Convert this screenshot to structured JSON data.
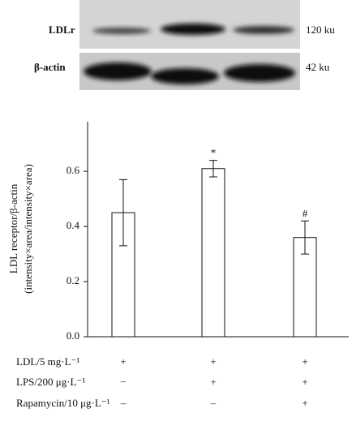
{
  "blot": {
    "rows": [
      {
        "label": "LDLr",
        "size": "120 ku"
      },
      {
        "label": "β-actin",
        "size": "42 ku"
      }
    ]
  },
  "chart_data": {
    "type": "bar",
    "y_label": [
      "LDL receptor/β-actin",
      "(intensity×area/intensity×area)"
    ],
    "categories": [
      null,
      null,
      null
    ],
    "values": [
      0.45,
      0.61,
      0.36
    ],
    "errors": [
      0.12,
      0.03,
      0.06
    ],
    "annotations": [
      null,
      "*",
      "#"
    ],
    "color": "#ffffff",
    "ylim": [
      0,
      0.78
    ],
    "yticks": [
      {
        "value": 0,
        "label": "0.0"
      },
      0.2,
      0.4,
      0.6
    ]
  },
  "treatments": {
    "rows": [
      {
        "label": "LDL/5 mg·L⁻¹",
        "signs": [
          "+",
          "+",
          "+"
        ]
      },
      {
        "label": "LPS/200 μg·L⁻¹",
        "signs": [
          "−",
          "+",
          "+"
        ]
      },
      {
        "label": "Rapamycin/10 μg·L⁻¹",
        "signs": [
          "–",
          "–",
          "+"
        ]
      }
    ]
  }
}
